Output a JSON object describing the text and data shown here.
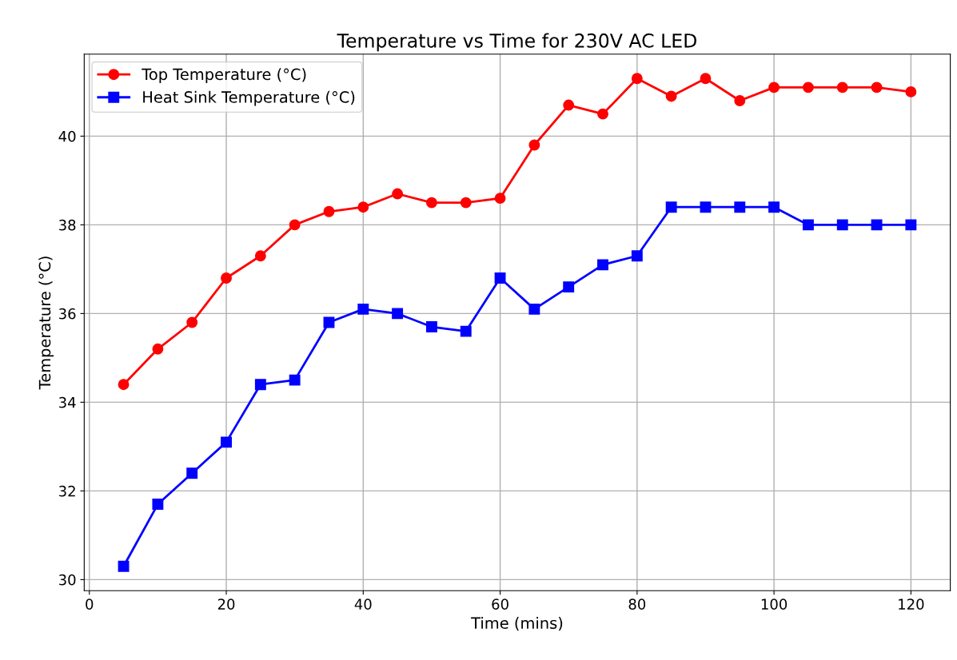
{
  "chart_data": {
    "type": "line",
    "title": "Temperature vs Time for 230V AC LED",
    "xlabel": "Time (mins)",
    "ylabel": "Temperature (°C)",
    "x": [
      5,
      10,
      15,
      20,
      25,
      30,
      35,
      40,
      45,
      50,
      55,
      60,
      65,
      70,
      75,
      80,
      85,
      90,
      95,
      100,
      105,
      110,
      115,
      120
    ],
    "series": [
      {
        "name": "Top Temperature (°C)",
        "color": "#ff0000",
        "marker": "circle",
        "values": [
          34.4,
          35.2,
          35.8,
          36.8,
          37.3,
          38.0,
          38.3,
          38.4,
          38.7,
          38.5,
          38.5,
          38.6,
          39.8,
          40.7,
          40.5,
          41.3,
          40.9,
          41.3,
          40.8,
          41.1,
          41.1,
          41.1,
          41.1,
          41.0
        ]
      },
      {
        "name": "Heat Sink Temperature (°C)",
        "color": "#0000ff",
        "marker": "square",
        "values": [
          30.3,
          31.7,
          32.4,
          33.1,
          34.4,
          34.5,
          35.8,
          36.1,
          36.0,
          35.7,
          35.6,
          36.8,
          36.1,
          36.6,
          37.1,
          37.3,
          38.4,
          38.4,
          38.4,
          38.4,
          38.0,
          38.0,
          38.0,
          38.0
        ]
      }
    ],
    "xlim": [
      -0.75,
      125.75
    ],
    "ylim": [
      29.75,
      41.85
    ],
    "xticks": [
      0,
      20,
      40,
      60,
      80,
      100,
      120
    ],
    "yticks": [
      30,
      32,
      34,
      36,
      38,
      40
    ],
    "grid": true,
    "legend": "top left",
    "line_style": "solid"
  }
}
